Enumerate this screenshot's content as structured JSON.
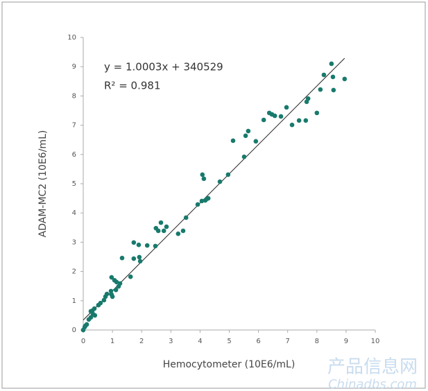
{
  "chart_data": {
    "type": "scatter",
    "xlabel": "Hemocytometer (10E6/mL)",
    "ylabel": "ADAM-MC2 (10E6/mL)",
    "annotations": [
      "y = 1.0003x + 340529",
      "R² = 0.981"
    ],
    "watermark": [
      "产品信息网",
      "Chinadbs.com"
    ],
    "color": "#187a6c",
    "xlim": [
      0,
      10
    ],
    "ylim": [
      0,
      10
    ],
    "xticks": [
      0,
      1,
      2,
      3,
      4,
      5,
      6,
      7,
      8,
      9,
      10
    ],
    "yticks": [
      0,
      1,
      2,
      3,
      4,
      5,
      6,
      7,
      8,
      9,
      10
    ],
    "trendline": {
      "x": [
        0,
        8.95
      ],
      "y": [
        0.34,
        9.29
      ]
    },
    "x": [
      0,
      0.05,
      0.12,
      0.07,
      0.19,
      0.26,
      0.33,
      0.31,
      0.38,
      0.26,
      0.4,
      0.52,
      0.59,
      0.71,
      0.76,
      0.81,
      0.95,
      0.97,
      1.0,
      0.97,
      1.07,
      1.14,
      1.12,
      1.21,
      1.26,
      1.33,
      1.62,
      1.73,
      1.73,
      1.9,
      1.92,
      1.95,
      2.19,
      2.47,
      2.49,
      2.57,
      2.66,
      2.76,
      2.85,
      3.25,
      3.42,
      3.52,
      3.92,
      4.06,
      4.08,
      4.13,
      4.18,
      4.23,
      4.28,
      4.68,
      4.96,
      5.13,
      5.51,
      5.56,
      5.65,
      5.91,
      6.18,
      6.37,
      6.46,
      6.56,
      6.77,
      6.96,
      7.15,
      7.39,
      7.65,
      7.7,
      7.62,
      8.0,
      8.12,
      8.24,
      8.5,
      8.55,
      8.57,
      8.95
    ],
    "y": [
      0,
      0.1,
      0.19,
      0.14,
      0.36,
      0.43,
      0.55,
      0.66,
      0.73,
      0.64,
      0.5,
      0.85,
      0.92,
      1.02,
      1.14,
      1.23,
      1.33,
      1.21,
      1.14,
      1.8,
      1.7,
      1.64,
      1.37,
      1.49,
      1.59,
      2.46,
      1.82,
      2.44,
      2.99,
      2.91,
      2.49,
      2.35,
      2.89,
      2.87,
      3.48,
      3.39,
      3.67,
      3.39,
      3.53,
      3.29,
      3.39,
      3.84,
      4.29,
      4.41,
      5.31,
      5.17,
      4.43,
      4.48,
      4.5,
      5.07,
      5.31,
      6.47,
      5.92,
      6.64,
      6.8,
      6.45,
      7.18,
      7.42,
      7.37,
      7.32,
      7.3,
      7.61,
      7.01,
      7.16,
      7.8,
      7.91,
      7.16,
      7.42,
      8.22,
      8.72,
      9.1,
      8.65,
      8.2,
      8.58
    ]
  }
}
